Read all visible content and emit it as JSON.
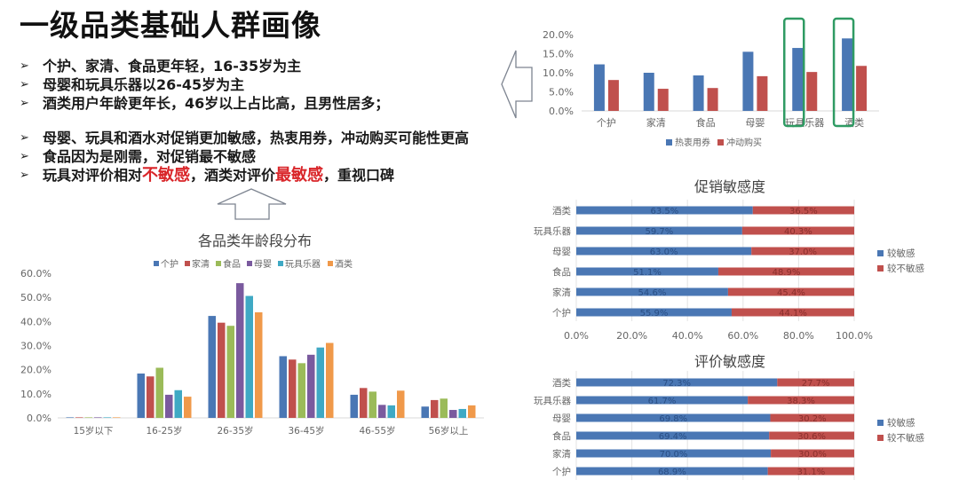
{
  "title": "一级品类基础人群画像",
  "bullets_group1": [
    "个护、家清、食品更年轻，16-35岁为主",
    "母婴和玩具乐器以26-45岁为主",
    "酒类用户年龄更年长，46岁以上占比高，且男性居多；"
  ],
  "bullets_group2": [
    {
      "parts": [
        {
          "text": "母婴、玩具和酒水对促销更加敏感，热衷用券，冲动购买可能性更高",
          "highlight": false
        }
      ]
    },
    {
      "parts": [
        {
          "text": "食品因为是刚需，对促销最不敏感",
          "highlight": false
        }
      ]
    },
    {
      "parts": [
        {
          "text": "玩具对评价相对",
          "highlight": false
        },
        {
          "text": "不敏感",
          "highlight": true
        },
        {
          "text": "，酒类对评价",
          "highlight": false
        },
        {
          "text": "最敏感",
          "highlight": true
        },
        {
          "text": "，重视口碑",
          "highlight": false
        }
      ]
    }
  ],
  "bullet_marker": "➢",
  "colors": {
    "blue": "#4a77b4",
    "red": "#c0504d",
    "green": "#9bbb59",
    "purple": "#7a5a9e",
    "teal": "#3fa9c4",
    "orange": "#f0994a",
    "highlight_box": "#2f9b63",
    "text_red": "#d9262a",
    "axis_text": "#666666",
    "grid": "#e3e3e3"
  },
  "chart_data": [
    {
      "id": "coupon_impulse",
      "type": "bar",
      "title": "",
      "categories": [
        "个护",
        "家清",
        "食品",
        "母婴",
        "玩具乐器",
        "酒类"
      ],
      "series": [
        {
          "name": "热衷用券",
          "color": "#4a77b4",
          "values": [
            12.2,
            10.0,
            9.3,
            15.5,
            16.5,
            19.0
          ]
        },
        {
          "name": "冲动购买",
          "color": "#c0504d",
          "values": [
            8.1,
            5.8,
            6.0,
            9.1,
            10.2,
            11.8
          ]
        }
      ],
      "yticks": [
        "0.0%",
        "5.0%",
        "10.0%",
        "15.0%",
        "20.0%"
      ],
      "ylim": [
        0,
        20
      ],
      "xlabel": "",
      "ylabel": "",
      "grid": false,
      "legend_position": "bottom",
      "highlighted_categories": [
        "玩具乐器",
        "酒类"
      ]
    },
    {
      "id": "age_distribution",
      "type": "bar",
      "title": "各品类年龄段分布",
      "categories": [
        "15岁以下",
        "16-25岁",
        "26-35岁",
        "36-45岁",
        "46-55岁",
        "56岁以上"
      ],
      "series": [
        {
          "name": "个护",
          "color": "#4a77b4",
          "values": [
            0.2,
            18.4,
            42.3,
            25.6,
            9.6,
            4.7
          ]
        },
        {
          "name": "家清",
          "color": "#c0504d",
          "values": [
            0.2,
            17.2,
            39.5,
            24.2,
            12.4,
            7.4
          ]
        },
        {
          "name": "食品",
          "color": "#9bbb59",
          "values": [
            0.2,
            20.8,
            38.2,
            22.7,
            10.9,
            8.0
          ]
        },
        {
          "name": "母婴",
          "color": "#7a5a9e",
          "values": [
            0.2,
            9.6,
            55.9,
            26.2,
            5.4,
            3.3
          ]
        },
        {
          "name": "玩具乐器",
          "color": "#3fa9c4",
          "values": [
            0.2,
            11.5,
            50.6,
            29.2,
            5.2,
            3.7
          ]
        },
        {
          "name": "酒类",
          "color": "#f0994a",
          "values": [
            0.2,
            8.8,
            43.8,
            31.1,
            11.3,
            5.2
          ]
        }
      ],
      "yticks": [
        "0.0%",
        "10.0%",
        "20.0%",
        "30.0%",
        "40.0%",
        "50.0%",
        "60.0%"
      ],
      "ylim": [
        0,
        60
      ],
      "xlabel": "",
      "ylabel": "",
      "grid": false,
      "legend_position": "top"
    },
    {
      "id": "promo_sensitivity",
      "type": "bar",
      "orientation": "horizontal",
      "stacked": true,
      "title": "促销敏感度",
      "categories": [
        "酒类",
        "玩具乐器",
        "母婴",
        "食品",
        "家清",
        "个护"
      ],
      "series": [
        {
          "name": "较敏感",
          "color": "#4a77b4",
          "values": [
            63.5,
            59.7,
            63.0,
            51.1,
            54.6,
            55.9
          ],
          "labels": [
            "63.5%",
            "59.7%",
            "63.0%",
            "51.1%",
            "54.6%",
            "55.9%"
          ]
        },
        {
          "name": "较不敏感",
          "color": "#c0504d",
          "values": [
            36.5,
            40.3,
            37.0,
            48.9,
            45.4,
            44.1
          ],
          "labels": [
            "36.5%",
            "40.3%",
            "37.0%",
            "48.9%",
            "45.4%",
            "44.1%"
          ]
        }
      ],
      "xticks": [
        "0.0%",
        "20.0%",
        "40.0%",
        "60.0%",
        "80.0%",
        "100.0%"
      ],
      "xlim": [
        0,
        100
      ],
      "grid": true,
      "legend_position": "right"
    },
    {
      "id": "review_sensitivity",
      "type": "bar",
      "orientation": "horizontal",
      "stacked": true,
      "title": "评价敏感度",
      "categories": [
        "酒类",
        "玩具乐器",
        "母婴",
        "食品",
        "家清",
        "个护"
      ],
      "series": [
        {
          "name": "较敏感",
          "color": "#4a77b4",
          "values": [
            72.3,
            61.7,
            69.8,
            69.4,
            70.0,
            68.9
          ],
          "labels": [
            "72.3%",
            "61.7%",
            "69.8%",
            "69.4%",
            "70.0%",
            "68.9%"
          ]
        },
        {
          "name": "较不敏感",
          "color": "#c0504d",
          "values": [
            27.7,
            38.3,
            30.2,
            30.6,
            30.0,
            31.1
          ],
          "labels": [
            "27.7%",
            "38.3%",
            "30.2%",
            "30.6%",
            "30.0%",
            "31.1%"
          ]
        }
      ],
      "xlim": [
        0,
        100
      ],
      "grid": true,
      "legend_position": "right"
    }
  ]
}
